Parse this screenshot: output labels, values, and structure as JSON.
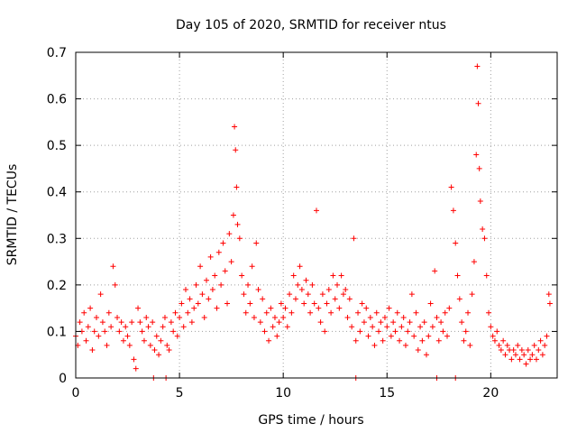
{
  "chart_data": {
    "type": "scatter",
    "title": "Day 105 of 2020, SRMTID for receiver ntus",
    "xlabel": "GPS time / hours",
    "ylabel": "SRMTID / TECUs",
    "xlim": [
      0,
      23.2
    ],
    "ylim": [
      0,
      0.7
    ],
    "xticks": [
      "0",
      "5",
      "10",
      "15",
      "20"
    ],
    "yticks": [
      "0",
      "0.1",
      "0.2",
      "0.3",
      "0.4",
      "0.5",
      "0.6",
      "0.7"
    ],
    "grid": true,
    "marker": "+",
    "color": "#ff0000",
    "series": [
      {
        "name": "SRMTID",
        "points": [
          [
            0.0,
            0.09
          ],
          [
            0.1,
            0.07
          ],
          [
            0.2,
            0.12
          ],
          [
            0.3,
            0.1
          ],
          [
            0.4,
            0.14
          ],
          [
            0.5,
            0.08
          ],
          [
            0.6,
            0.11
          ],
          [
            0.7,
            0.15
          ],
          [
            0.8,
            0.06
          ],
          [
            0.9,
            0.1
          ],
          [
            1.0,
            0.13
          ],
          [
            1.1,
            0.09
          ],
          [
            1.2,
            0.18
          ],
          [
            1.3,
            0.12
          ],
          [
            1.4,
            0.1
          ],
          [
            1.5,
            0.07
          ],
          [
            1.6,
            0.14
          ],
          [
            1.7,
            0.11
          ],
          [
            1.8,
            0.24
          ],
          [
            1.9,
            0.2
          ],
          [
            2.0,
            0.13
          ],
          [
            2.1,
            0.1
          ],
          [
            2.2,
            0.12
          ],
          [
            2.3,
            0.08
          ],
          [
            2.4,
            0.11
          ],
          [
            2.5,
            0.09
          ],
          [
            2.6,
            0.07
          ],
          [
            2.7,
            0.12
          ],
          [
            2.8,
            0.04
          ],
          [
            2.9,
            0.02
          ],
          [
            3.0,
            0.15
          ],
          [
            3.1,
            0.12
          ],
          [
            3.2,
            0.1
          ],
          [
            3.3,
            0.08
          ],
          [
            3.4,
            0.13
          ],
          [
            3.5,
            0.11
          ],
          [
            3.6,
            0.07
          ],
          [
            3.7,
            0.12
          ],
          [
            3.8,
            0.06
          ],
          [
            3.9,
            0.09
          ],
          [
            4.0,
            0.05
          ],
          [
            4.1,
            0.08
          ],
          [
            4.2,
            0.11
          ],
          [
            4.3,
            0.13
          ],
          [
            4.4,
            0.07
          ],
          [
            4.5,
            0.06
          ],
          [
            4.6,
            0.12
          ],
          [
            4.7,
            0.1
          ],
          [
            4.8,
            0.14
          ],
          [
            4.9,
            0.09
          ],
          [
            5.0,
            0.13
          ],
          [
            5.1,
            0.16
          ],
          [
            5.2,
            0.11
          ],
          [
            5.3,
            0.19
          ],
          [
            5.4,
            0.14
          ],
          [
            5.5,
            0.17
          ],
          [
            5.6,
            0.12
          ],
          [
            5.7,
            0.15
          ],
          [
            5.8,
            0.2
          ],
          [
            5.9,
            0.16
          ],
          [
            6.0,
            0.24
          ],
          [
            6.1,
            0.18
          ],
          [
            6.2,
            0.13
          ],
          [
            6.3,
            0.21
          ],
          [
            6.4,
            0.17
          ],
          [
            6.5,
            0.26
          ],
          [
            6.6,
            0.19
          ],
          [
            6.7,
            0.22
          ],
          [
            6.8,
            0.15
          ],
          [
            6.9,
            0.27
          ],
          [
            7.0,
            0.2
          ],
          [
            7.1,
            0.29
          ],
          [
            7.2,
            0.23
          ],
          [
            7.3,
            0.16
          ],
          [
            7.4,
            0.31
          ],
          [
            7.5,
            0.25
          ],
          [
            7.6,
            0.35
          ],
          [
            7.65,
            0.54
          ],
          [
            7.7,
            0.49
          ],
          [
            7.75,
            0.41
          ],
          [
            7.8,
            0.33
          ],
          [
            7.9,
            0.3
          ],
          [
            8.0,
            0.22
          ],
          [
            8.1,
            0.18
          ],
          [
            8.2,
            0.14
          ],
          [
            8.3,
            0.2
          ],
          [
            8.4,
            0.16
          ],
          [
            8.5,
            0.24
          ],
          [
            8.6,
            0.13
          ],
          [
            8.7,
            0.29
          ],
          [
            8.8,
            0.19
          ],
          [
            8.9,
            0.12
          ],
          [
            9.0,
            0.17
          ],
          [
            9.1,
            0.1
          ],
          [
            9.2,
            0.14
          ],
          [
            9.3,
            0.08
          ],
          [
            9.4,
            0.15
          ],
          [
            9.5,
            0.11
          ],
          [
            9.6,
            0.13
          ],
          [
            9.7,
            0.09
          ],
          [
            9.8,
            0.12
          ],
          [
            9.9,
            0.16
          ],
          [
            10.0,
            0.13
          ],
          [
            10.1,
            0.15
          ],
          [
            10.2,
            0.11
          ],
          [
            10.3,
            0.18
          ],
          [
            10.4,
            0.14
          ],
          [
            10.5,
            0.22
          ],
          [
            10.6,
            0.17
          ],
          [
            10.7,
            0.2
          ],
          [
            10.8,
            0.24
          ],
          [
            10.9,
            0.19
          ],
          [
            11.0,
            0.16
          ],
          [
            11.1,
            0.21
          ],
          [
            11.2,
            0.18
          ],
          [
            11.3,
            0.14
          ],
          [
            11.4,
            0.2
          ],
          [
            11.5,
            0.16
          ],
          [
            11.6,
            0.36
          ],
          [
            11.7,
            0.15
          ],
          [
            11.8,
            0.12
          ],
          [
            11.9,
            0.18
          ],
          [
            12.0,
            0.1
          ],
          [
            12.1,
            0.16
          ],
          [
            12.2,
            0.19
          ],
          [
            12.3,
            0.14
          ],
          [
            12.4,
            0.22
          ],
          [
            12.5,
            0.17
          ],
          [
            12.6,
            0.2
          ],
          [
            12.7,
            0.15
          ],
          [
            12.8,
            0.22
          ],
          [
            12.9,
            0.18
          ],
          [
            13.0,
            0.19
          ],
          [
            13.1,
            0.13
          ],
          [
            13.2,
            0.17
          ],
          [
            13.3,
            0.11
          ],
          [
            13.4,
            0.3
          ],
          [
            13.5,
            0.08
          ],
          [
            13.6,
            0.14
          ],
          [
            13.7,
            0.1
          ],
          [
            13.8,
            0.16
          ],
          [
            13.9,
            0.12
          ],
          [
            14.0,
            0.15
          ],
          [
            14.1,
            0.09
          ],
          [
            14.2,
            0.13
          ],
          [
            14.3,
            0.11
          ],
          [
            14.4,
            0.07
          ],
          [
            14.5,
            0.14
          ],
          [
            14.6,
            0.1
          ],
          [
            14.7,
            0.12
          ],
          [
            14.8,
            0.08
          ],
          [
            14.9,
            0.13
          ],
          [
            15.0,
            0.11
          ],
          [
            15.1,
            0.15
          ],
          [
            15.2,
            0.09
          ],
          [
            15.3,
            0.12
          ],
          [
            15.4,
            0.1
          ],
          [
            15.5,
            0.14
          ],
          [
            15.6,
            0.08
          ],
          [
            15.7,
            0.11
          ],
          [
            15.8,
            0.13
          ],
          [
            15.9,
            0.07
          ],
          [
            16.0,
            0.1
          ],
          [
            16.1,
            0.12
          ],
          [
            16.2,
            0.18
          ],
          [
            16.3,
            0.09
          ],
          [
            16.4,
            0.14
          ],
          [
            16.5,
            0.06
          ],
          [
            16.6,
            0.11
          ],
          [
            16.7,
            0.08
          ],
          [
            16.8,
            0.12
          ],
          [
            16.9,
            0.05
          ],
          [
            17.0,
            0.09
          ],
          [
            17.1,
            0.16
          ],
          [
            17.2,
            0.11
          ],
          [
            17.3,
            0.23
          ],
          [
            17.4,
            0.13
          ],
          [
            17.5,
            0.08
          ],
          [
            17.6,
            0.12
          ],
          [
            17.7,
            0.1
          ],
          [
            17.8,
            0.14
          ],
          [
            17.9,
            0.09
          ],
          [
            18.0,
            0.15
          ],
          [
            18.1,
            0.41
          ],
          [
            18.2,
            0.36
          ],
          [
            18.3,
            0.29
          ],
          [
            18.4,
            0.22
          ],
          [
            18.5,
            0.17
          ],
          [
            18.6,
            0.12
          ],
          [
            18.7,
            0.08
          ],
          [
            18.8,
            0.1
          ],
          [
            18.9,
            0.14
          ],
          [
            19.0,
            0.07
          ],
          [
            19.1,
            0.18
          ],
          [
            19.2,
            0.25
          ],
          [
            19.3,
            0.48
          ],
          [
            19.35,
            0.67
          ],
          [
            19.4,
            0.59
          ],
          [
            19.45,
            0.45
          ],
          [
            19.5,
            0.38
          ],
          [
            19.6,
            0.32
          ],
          [
            19.7,
            0.3
          ],
          [
            19.8,
            0.22
          ],
          [
            19.9,
            0.14
          ],
          [
            20.0,
            0.11
          ],
          [
            20.1,
            0.09
          ],
          [
            20.2,
            0.08
          ],
          [
            20.3,
            0.1
          ],
          [
            20.4,
            0.07
          ],
          [
            20.5,
            0.06
          ],
          [
            20.6,
            0.08
          ],
          [
            20.7,
            0.05
          ],
          [
            20.8,
            0.07
          ],
          [
            20.9,
            0.06
          ],
          [
            21.0,
            0.04
          ],
          [
            21.1,
            0.06
          ],
          [
            21.2,
            0.05
          ],
          [
            21.3,
            0.07
          ],
          [
            21.4,
            0.04
          ],
          [
            21.5,
            0.06
          ],
          [
            21.6,
            0.05
          ],
          [
            21.7,
            0.03
          ],
          [
            21.8,
            0.06
          ],
          [
            21.9,
            0.04
          ],
          [
            22.0,
            0.05
          ],
          [
            22.1,
            0.07
          ],
          [
            22.2,
            0.04
          ],
          [
            22.3,
            0.06
          ],
          [
            22.4,
            0.08
          ],
          [
            22.5,
            0.05
          ],
          [
            22.6,
            0.07
          ],
          [
            22.7,
            0.09
          ],
          [
            22.8,
            0.18
          ],
          [
            22.85,
            0.16
          ],
          [
            3.75,
            0.0
          ],
          [
            4.35,
            0.0
          ],
          [
            13.5,
            0.0
          ],
          [
            17.4,
            0.0
          ],
          [
            18.3,
            0.0
          ]
        ]
      }
    ]
  }
}
